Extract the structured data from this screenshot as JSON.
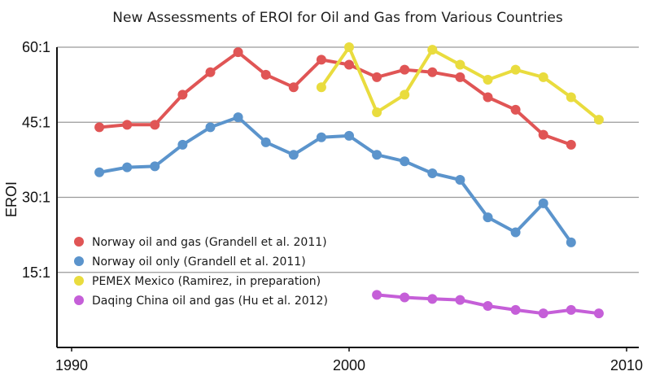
{
  "chart_data": {
    "type": "line",
    "title": "New Assessments of EROI for Oil and Gas from Various Countries",
    "xlabel": "",
    "ylabel": "EROI",
    "xlim": [
      1990,
      2010
    ],
    "ylim": [
      0,
      60
    ],
    "x_ticks": [
      {
        "value": 1990,
        "label": "1990"
      },
      {
        "value": 2000,
        "label": "2000"
      },
      {
        "value": 2010,
        "label": "2010"
      }
    ],
    "y_ticks": [
      {
        "value": 15,
        "label": "15:1"
      },
      {
        "value": 30,
        "label": "30:1"
      },
      {
        "value": 45,
        "label": "45:1"
      },
      {
        "value": 60,
        "label": "60:1"
      }
    ],
    "grid": "horizontal",
    "legend_position": "bottom-left",
    "series": [
      {
        "name": "Norway oil and gas (Grandell et al. 2011)",
        "color": "#e05555",
        "points": [
          [
            1991,
            44
          ],
          [
            1992,
            44.5
          ],
          [
            1993,
            44.5
          ],
          [
            1994,
            50.5
          ],
          [
            1995,
            55
          ],
          [
            1996,
            59
          ],
          [
            1997,
            54.5
          ],
          [
            1998,
            52
          ],
          [
            1999,
            57.5
          ],
          [
            2000,
            56.5
          ],
          [
            2001,
            54
          ],
          [
            2002,
            55.5
          ],
          [
            2003,
            55
          ],
          [
            2004,
            54
          ],
          [
            2005,
            50
          ],
          [
            2006,
            47.5
          ],
          [
            2007,
            42.5
          ],
          [
            2008,
            40.5
          ]
        ]
      },
      {
        "name": "Norway oil only (Grandell et al. 2011)",
        "color": "#5b94cc",
        "points": [
          [
            1991,
            35
          ],
          [
            1992,
            36
          ],
          [
            1993,
            36.2
          ],
          [
            1994,
            40.5
          ],
          [
            1995,
            44
          ],
          [
            1996,
            46
          ],
          [
            1997,
            41
          ],
          [
            1998,
            38.5
          ],
          [
            1999,
            42
          ],
          [
            2000,
            42.3
          ],
          [
            2001,
            38.5
          ],
          [
            2002,
            37.2
          ],
          [
            2003,
            34.8
          ],
          [
            2004,
            33.5
          ],
          [
            2005,
            26
          ],
          [
            2006,
            23
          ],
          [
            2007,
            28.8
          ],
          [
            2008,
            21
          ]
        ]
      },
      {
        "name": "PEMEX Mexico (Ramirez, in preparation)",
        "color": "#e9dc3e",
        "points": [
          [
            1999,
            52
          ],
          [
            2000,
            60
          ],
          [
            2001,
            47
          ],
          [
            2002,
            50.5
          ],
          [
            2003,
            59.5
          ],
          [
            2004,
            56.5
          ],
          [
            2005,
            53.5
          ],
          [
            2006,
            55.5
          ],
          [
            2007,
            54
          ],
          [
            2008,
            50
          ],
          [
            2009,
            45.5
          ]
        ]
      },
      {
        "name": "Daqing China oil and gas (Hu et al. 2012)",
        "color": "#c55fd8",
        "points": [
          [
            2001,
            10.5
          ],
          [
            2002,
            10
          ],
          [
            2003,
            9.7
          ],
          [
            2004,
            9.5
          ],
          [
            2005,
            8.3
          ],
          [
            2006,
            7.5
          ],
          [
            2007,
            6.8
          ],
          [
            2008,
            7.5
          ],
          [
            2009,
            6.8
          ]
        ]
      }
    ]
  }
}
